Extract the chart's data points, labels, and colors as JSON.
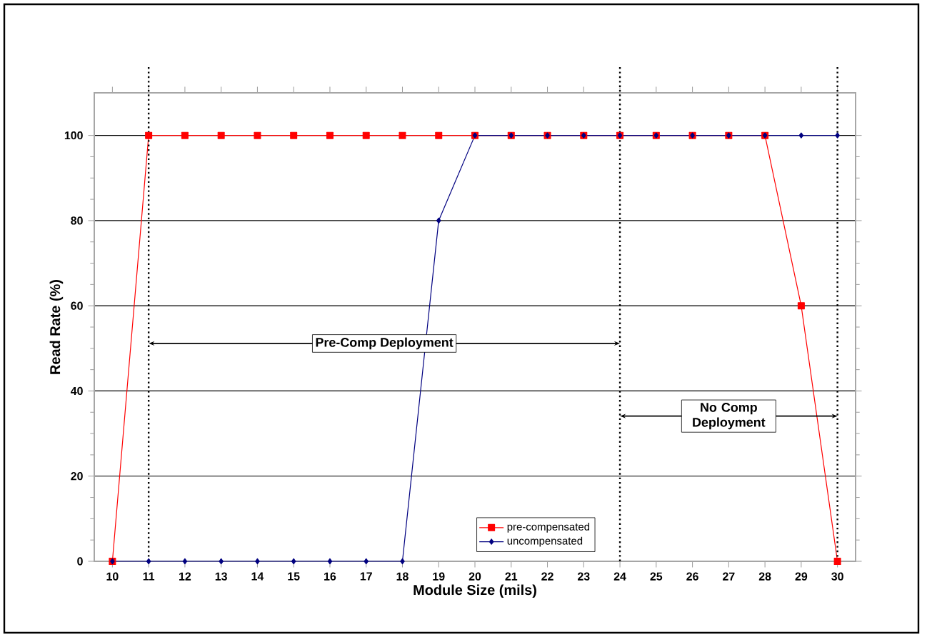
{
  "chart_data": {
    "type": "line",
    "xlabel": "Module Size (mils)",
    "ylabel": "Read Rate (%)",
    "x": [
      10,
      11,
      12,
      13,
      14,
      15,
      16,
      17,
      18,
      19,
      20,
      21,
      22,
      23,
      24,
      25,
      26,
      27,
      28,
      29,
      30
    ],
    "series": [
      {
        "name": "pre-compensated",
        "color": "#ff0000",
        "marker": "square",
        "values": [
          0,
          100,
          100,
          100,
          100,
          100,
          100,
          100,
          100,
          100,
          100,
          100,
          100,
          100,
          100,
          100,
          100,
          100,
          100,
          60,
          0
        ]
      },
      {
        "name": "uncompensated",
        "color": "#000080",
        "marker": "diamond",
        "values": [
          0,
          0,
          0,
          0,
          0,
          0,
          0,
          0,
          0,
          80,
          100,
          100,
          100,
          100,
          100,
          100,
          100,
          100,
          100,
          100,
          100
        ]
      }
    ],
    "xlim": [
      9.5,
      30.5
    ],
    "xticks": [
      10,
      11,
      12,
      13,
      14,
      15,
      16,
      17,
      18,
      19,
      20,
      21,
      22,
      23,
      24,
      25,
      26,
      27,
      28,
      29,
      30
    ],
    "ylim": [
      0,
      110
    ],
    "yticks": [
      0,
      20,
      40,
      60,
      80,
      100
    ],
    "grid": "y",
    "legend": "bottom",
    "line_style": "solid",
    "ref_lines": [
      {
        "axis": "x",
        "value": 11,
        "line_style": "dotted",
        "color": "#000000"
      },
      {
        "axis": "x",
        "value": 24,
        "line_style": "dotted",
        "color": "#000000"
      },
      {
        "axis": "x",
        "value": 30,
        "line_style": "dotted",
        "color": "#000000"
      }
    ],
    "annotations": [
      "Pre-Comp Deployment",
      "No Comp Deployment"
    ]
  }
}
